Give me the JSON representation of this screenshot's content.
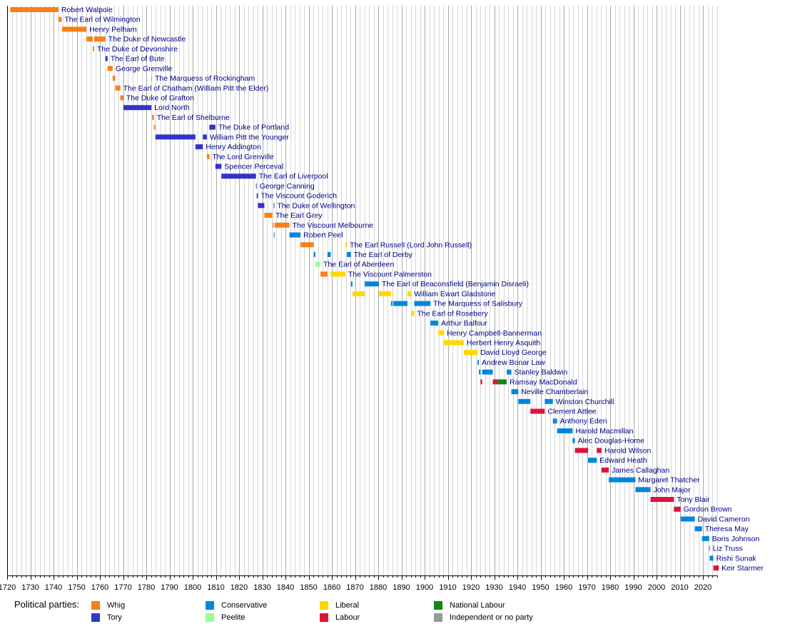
{
  "chart_data": {
    "type": "bar",
    "subtype": "timeline",
    "title": "",
    "xlabel": "",
    "ylabel": "",
    "xlim": [
      1720,
      2025
    ],
    "x_ticks": [
      1720,
      1730,
      1740,
      1750,
      1760,
      1770,
      1780,
      1790,
      1800,
      1810,
      1820,
      1830,
      1840,
      1850,
      1860,
      1870,
      1880,
      1890,
      1900,
      1910,
      1920,
      1930,
      1940,
      1950,
      1960,
      1970,
      1980,
      1990,
      2000,
      2010,
      2020
    ],
    "minor_gridlines": "every 2 years",
    "legend_title": "Political parties:",
    "legend_position": "bottom",
    "parties": [
      {
        "key": "whig",
        "name": "Whig",
        "color": "#F88017"
      },
      {
        "key": "tory",
        "name": "Tory",
        "color": "#3333CC"
      },
      {
        "key": "conservative",
        "name": "Conservative",
        "color": "#0087DC"
      },
      {
        "key": "peelite",
        "name": "Peelite",
        "color": "#99FF99"
      },
      {
        "key": "liberal",
        "name": "Liberal",
        "color": "#FFD700"
      },
      {
        "key": "labour",
        "name": "Labour",
        "color": "#DC143C"
      },
      {
        "key": "national_labour",
        "name": "National Labour",
        "color": "#118811"
      },
      {
        "key": "independent",
        "name": "Independent or no party",
        "color": "#999999"
      }
    ],
    "series": [
      {
        "name": "Robert Walpole",
        "terms": [
          [
            1721.3,
            1742.1,
            "whig"
          ]
        ]
      },
      {
        "name": "The Earl of Wilmington",
        "terms": [
          [
            1742.1,
            1743.5,
            "whig"
          ]
        ]
      },
      {
        "name": "Henry Pelham",
        "terms": [
          [
            1743.7,
            1754.2,
            "whig"
          ]
        ]
      },
      {
        "name": "The Duke of Newcastle",
        "terms": [
          [
            1754.2,
            1756.9,
            "whig"
          ],
          [
            1757.5,
            1762.4,
            "whig"
          ]
        ]
      },
      {
        "name": "The Duke of Devonshire",
        "terms": [
          [
            1756.9,
            1757.5,
            "whig"
          ]
        ]
      },
      {
        "name": "The Earl of Bute",
        "terms": [
          [
            1762.4,
            1763.3,
            "tory"
          ]
        ]
      },
      {
        "name": "George Grenville",
        "terms": [
          [
            1763.3,
            1765.5,
            "whig"
          ]
        ]
      },
      {
        "name": "The Marquess of Rockingham",
        "terms": [
          [
            1765.5,
            1766.6,
            "whig"
          ],
          [
            1782.2,
            1782.5,
            "whig"
          ]
        ]
      },
      {
        "name": "The Earl of Chatham (William Pitt the Elder)",
        "terms": [
          [
            1766.6,
            1768.8,
            "whig"
          ]
        ]
      },
      {
        "name": "The Duke of Grafton",
        "terms": [
          [
            1768.8,
            1770.1,
            "whig"
          ]
        ]
      },
      {
        "name": "Lord North",
        "terms": [
          [
            1770.1,
            1782.2,
            "tory"
          ]
        ]
      },
      {
        "name": "The Earl of Shelburne",
        "terms": [
          [
            1782.5,
            1783.3,
            "whig"
          ]
        ]
      },
      {
        "name": "The Duke of Portland",
        "terms": [
          [
            1783.3,
            1783.9,
            "whig"
          ],
          [
            1807.2,
            1809.8,
            "tory"
          ]
        ]
      },
      {
        "name": "William Pitt the Younger",
        "terms": [
          [
            1783.9,
            1801.2,
            "tory"
          ],
          [
            1804.4,
            1806.1,
            "tory"
          ]
        ]
      },
      {
        "name": "Henry Addington",
        "terms": [
          [
            1801.2,
            1804.4,
            "tory"
          ]
        ]
      },
      {
        "name": "The Lord Grenville",
        "terms": [
          [
            1806.1,
            1807.2,
            "whig"
          ]
        ]
      },
      {
        "name": "Spencer Perceval",
        "terms": [
          [
            1809.8,
            1812.4,
            "tory"
          ]
        ]
      },
      {
        "name": "The Earl of Liverpool",
        "terms": [
          [
            1812.4,
            1827.3,
            "tory"
          ]
        ]
      },
      {
        "name": "George Canning",
        "terms": [
          [
            1827.3,
            1827.6,
            "tory"
          ]
        ]
      },
      {
        "name": "The Viscount Goderich",
        "terms": [
          [
            1827.6,
            1828.1,
            "tory"
          ]
        ]
      },
      {
        "name": "The Duke of Wellington",
        "terms": [
          [
            1828.1,
            1830.9,
            "tory"
          ],
          [
            1834.9,
            1834.95,
            "tory"
          ]
        ]
      },
      {
        "name": "The Earl Grey",
        "terms": [
          [
            1830.9,
            1834.5,
            "whig"
          ]
        ]
      },
      {
        "name": "The Viscount Melbourne",
        "terms": [
          [
            1834.5,
            1834.9,
            "whig"
          ],
          [
            1835.3,
            1841.7,
            "whig"
          ]
        ]
      },
      {
        "name": "Robert Peel",
        "terms": [
          [
            1834.95,
            1835.3,
            "conservative"
          ],
          [
            1841.7,
            1846.5,
            "conservative"
          ]
        ]
      },
      {
        "name": "The Earl Russell (Lord John Russell)",
        "terms": [
          [
            1846.5,
            1852.2,
            "whig"
          ],
          [
            1865.8,
            1866.5,
            "liberal"
          ]
        ]
      },
      {
        "name": "The Earl of Derby",
        "terms": [
          [
            1852.2,
            1852.9,
            "conservative"
          ],
          [
            1858.1,
            1859.5,
            "conservative"
          ],
          [
            1866.5,
            1868.2,
            "conservative"
          ]
        ]
      },
      {
        "name": "The Earl of Aberdeen",
        "terms": [
          [
            1852.9,
            1855.1,
            "peelite"
          ]
        ]
      },
      {
        "name": "The Viscount Palmerston",
        "terms": [
          [
            1855.1,
            1858.1,
            "whig"
          ],
          [
            1859.5,
            1865.8,
            "liberal"
          ]
        ]
      },
      {
        "name": "The Earl of Beaconsfield (Benjamin Disraeli)",
        "terms": [
          [
            1868.2,
            1868.9,
            "conservative"
          ],
          [
            1874.1,
            1880.3,
            "conservative"
          ]
        ]
      },
      {
        "name": "William Ewart Gladstone",
        "terms": [
          [
            1868.9,
            1874.1,
            "liberal"
          ],
          [
            1880.3,
            1885.5,
            "liberal"
          ],
          [
            1886.1,
            1886.5,
            "liberal"
          ],
          [
            1892.6,
            1894.2,
            "liberal"
          ]
        ]
      },
      {
        "name": "The Marquess of Salisbury",
        "terms": [
          [
            1885.5,
            1886.1,
            "conservative"
          ],
          [
            1886.5,
            1892.6,
            "conservative"
          ],
          [
            1895.5,
            1902.5,
            "conservative"
          ]
        ]
      },
      {
        "name": "The Earl of Rosebery",
        "terms": [
          [
            1894.2,
            1895.5,
            "liberal"
          ]
        ]
      },
      {
        "name": "Arthur Balfour",
        "terms": [
          [
            1902.5,
            1905.9,
            "conservative"
          ]
        ]
      },
      {
        "name": "Henry Campbell-Bannerman",
        "terms": [
          [
            1905.9,
            1908.3,
            "liberal"
          ]
        ]
      },
      {
        "name": "Herbert Henry Asquith",
        "terms": [
          [
            1908.3,
            1916.9,
            "liberal"
          ]
        ]
      },
      {
        "name": "David Lloyd George",
        "terms": [
          [
            1916.9,
            1922.8,
            "liberal"
          ]
        ]
      },
      {
        "name": "Andrew Bonar Law",
        "terms": [
          [
            1922.8,
            1923.4,
            "conservative"
          ]
        ]
      },
      {
        "name": "Stanley Baldwin",
        "terms": [
          [
            1923.4,
            1924.1,
            "conservative"
          ],
          [
            1924.8,
            1929.4,
            "conservative"
          ],
          [
            1935.4,
            1937.4,
            "conservative"
          ]
        ]
      },
      {
        "name": "Ramsay MacDonald",
        "terms": [
          [
            1924.1,
            1924.8,
            "labour"
          ],
          [
            1929.4,
            1931.6,
            "labour"
          ],
          [
            1931.6,
            1935.4,
            "national_labour"
          ]
        ]
      },
      {
        "name": "Neville Chamberlain",
        "terms": [
          [
            1937.4,
            1940.4,
            "conservative"
          ]
        ]
      },
      {
        "name": "Winston Churchill",
        "terms": [
          [
            1940.4,
            1945.6,
            "conservative"
          ],
          [
            1951.8,
            1955.3,
            "conservative"
          ]
        ]
      },
      {
        "name": "Clement Attlee",
        "terms": [
          [
            1945.6,
            1951.8,
            "labour"
          ]
        ]
      },
      {
        "name": "Anthony Eden",
        "terms": [
          [
            1955.3,
            1957.1,
            "conservative"
          ]
        ]
      },
      {
        "name": "Harold Macmillan",
        "terms": [
          [
            1957.1,
            1963.8,
            "conservative"
          ]
        ]
      },
      {
        "name": "Alec Douglas-Home",
        "terms": [
          [
            1963.8,
            1964.8,
            "conservative"
          ]
        ]
      },
      {
        "name": "Harold Wilson",
        "terms": [
          [
            1964.8,
            1970.5,
            "labour"
          ],
          [
            1974.2,
            1976.3,
            "labour"
          ]
        ]
      },
      {
        "name": "Edward Heath",
        "terms": [
          [
            1970.5,
            1974.2,
            "conservative"
          ]
        ]
      },
      {
        "name": "James Callaghan",
        "terms": [
          [
            1976.3,
            1979.4,
            "labour"
          ]
        ]
      },
      {
        "name": "Margaret Thatcher",
        "terms": [
          [
            1979.4,
            1990.9,
            "conservative"
          ]
        ]
      },
      {
        "name": "John Major",
        "terms": [
          [
            1990.9,
            1997.4,
            "conservative"
          ]
        ]
      },
      {
        "name": "Tony Blair",
        "terms": [
          [
            1997.4,
            2007.5,
            "labour"
          ]
        ]
      },
      {
        "name": "Gordon Brown",
        "terms": [
          [
            2007.5,
            2010.4,
            "labour"
          ]
        ]
      },
      {
        "name": "David Cameron",
        "terms": [
          [
            2010.4,
            2016.5,
            "conservative"
          ]
        ]
      },
      {
        "name": "Theresa May",
        "terms": [
          [
            2016.5,
            2019.6,
            "conservative"
          ]
        ]
      },
      {
        "name": "Boris Johnson",
        "terms": [
          [
            2019.6,
            2022.7,
            "conservative"
          ]
        ]
      },
      {
        "name": "Liz Truss",
        "terms": [
          [
            2022.7,
            2022.9,
            "conservative"
          ]
        ]
      },
      {
        "name": "Rishi Sunak",
        "terms": [
          [
            2022.9,
            2024.5,
            "conservative"
          ]
        ]
      },
      {
        "name": "Keir Starmer",
        "terms": [
          [
            2024.5,
            2026.8,
            "labour"
          ]
        ]
      }
    ]
  }
}
